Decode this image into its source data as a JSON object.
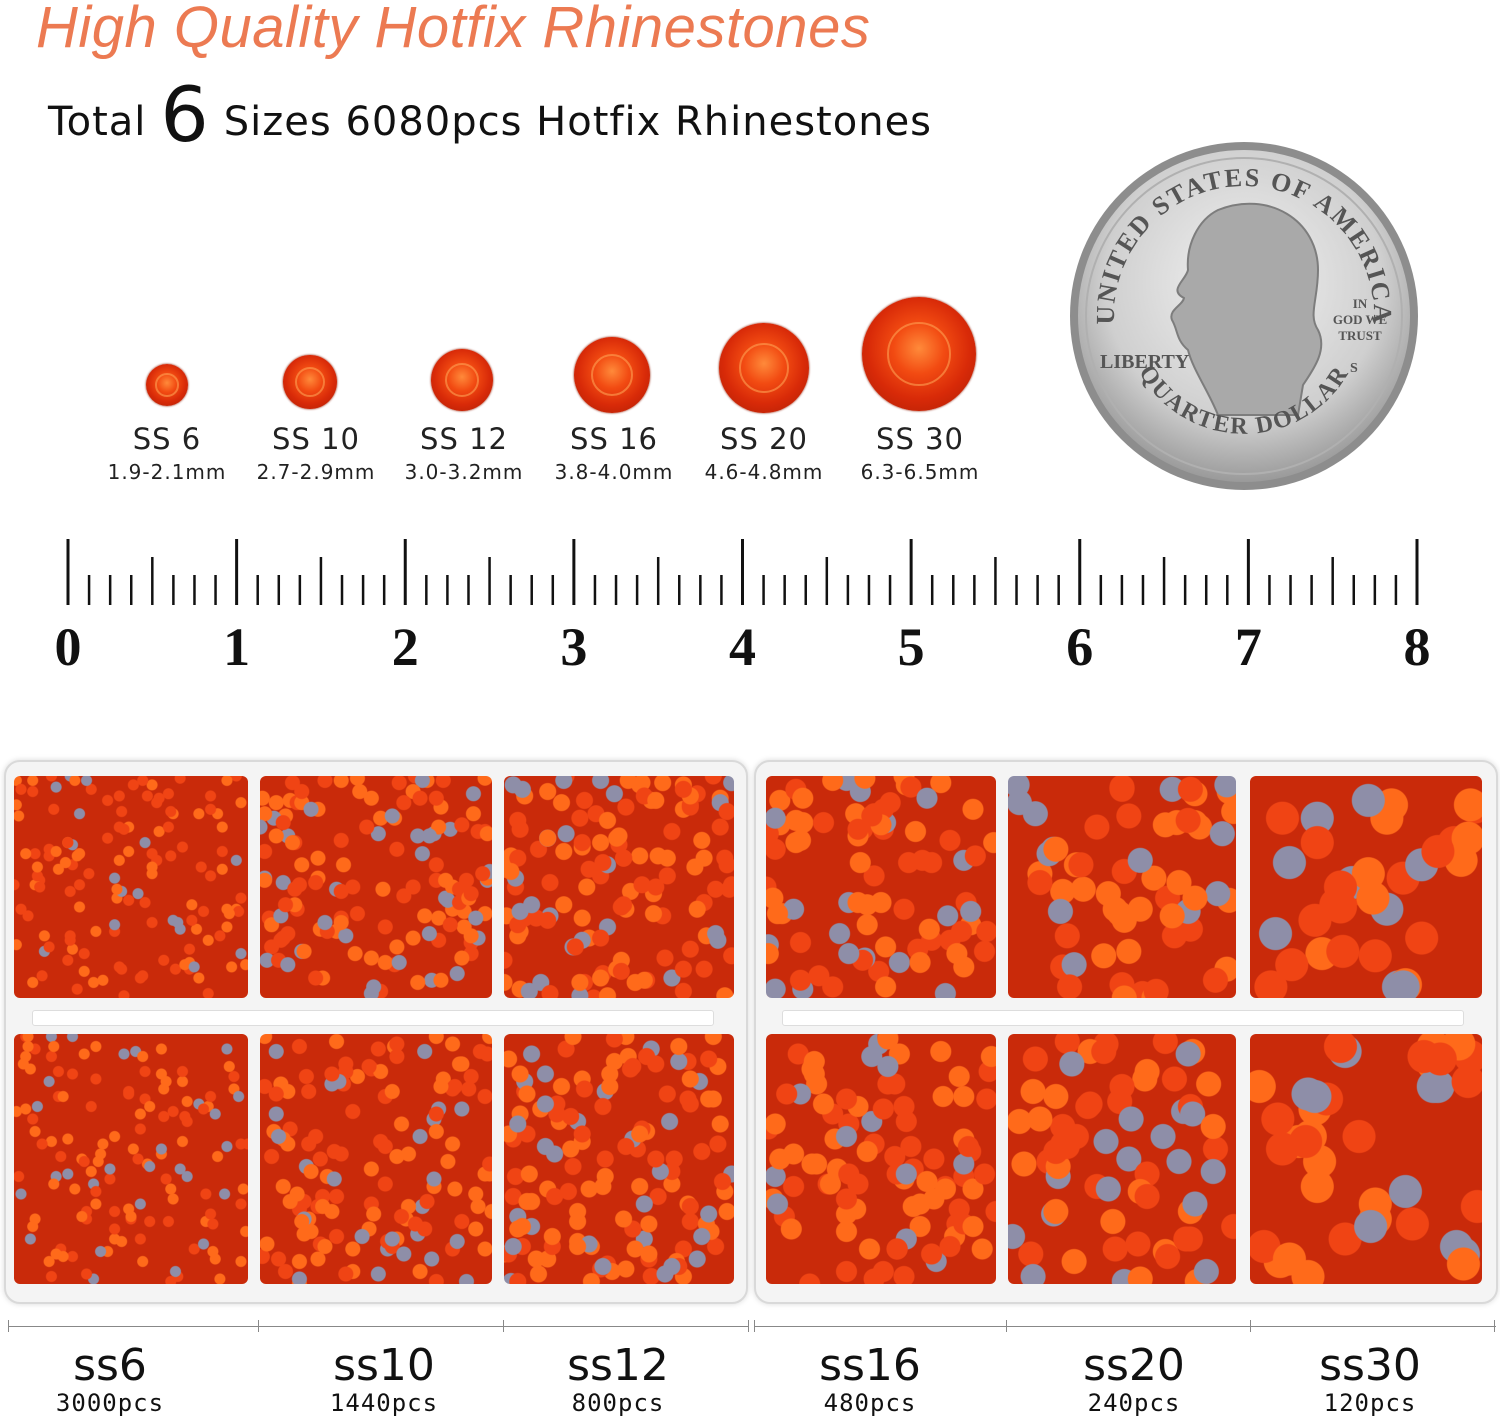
{
  "title": "High Quality Hotfix Rhinestones",
  "subtitle": {
    "prefix": "Total",
    "number": "6",
    "suffix": "Sizes 6080pcs Hotfix Rhinestones"
  },
  "sizes": [
    {
      "name": "SS 6",
      "mm": "1.9-2.1mm"
    },
    {
      "name": "SS 10",
      "mm": "2.7-2.9mm"
    },
    {
      "name": "SS 12",
      "mm": "3.0-3.2mm"
    },
    {
      "name": "SS 16",
      "mm": "3.8-4.0mm"
    },
    {
      "name": "SS 20",
      "mm": "4.6-4.8mm"
    },
    {
      "name": "SS 30",
      "mm": "6.3-6.5mm"
    }
  ],
  "coin": {
    "top_text": "UNITED STATES OF AMERICA",
    "bottom_text": "QUARTER DOLLAR",
    "liberty": "LIBERTY",
    "motto": [
      "IN",
      "GOD WE",
      "TRUST"
    ],
    "mint": "S"
  },
  "ruler": {
    "labels": [
      "0",
      "1",
      "2",
      "3",
      "4",
      "5",
      "6",
      "7",
      "8"
    ]
  },
  "counts": [
    {
      "code": "ss6",
      "qty": "3000pcs"
    },
    {
      "code": "ss10",
      "qty": "1440pcs"
    },
    {
      "code": "ss12",
      "qty": "800pcs"
    },
    {
      "code": "ss16",
      "qty": "480pcs"
    },
    {
      "code": "ss20",
      "qty": "240pcs"
    },
    {
      "code": "ss30",
      "qty": "120pcs"
    }
  ],
  "colors": {
    "title": "#ec7a52",
    "stone": "#e0360c"
  }
}
